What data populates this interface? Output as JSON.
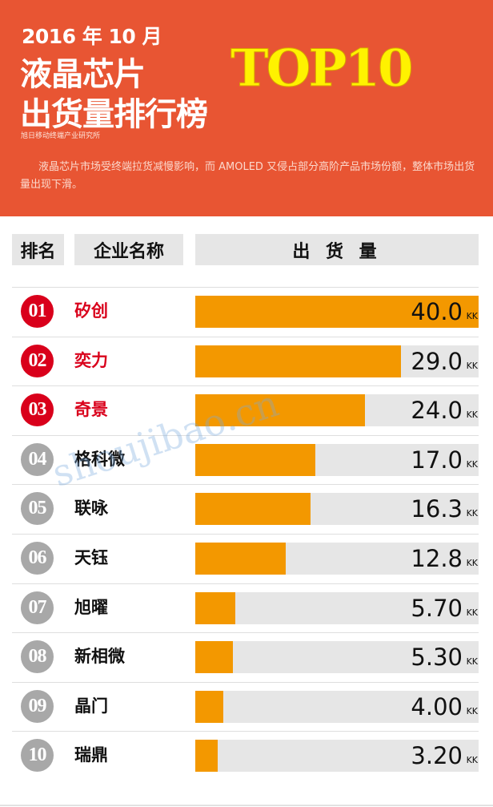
{
  "header": {
    "date": "2016 年 10 月",
    "title_line1": "液晶芯片",
    "title_line2": "出货量排行榜",
    "badge_text": "TOP10",
    "source": "旭日移动终端产业研究所",
    "description": "液晶芯片市场受终端拉货减慢影响，而 AMOLED 又侵占部分高阶产品市场份额，整体市场出货量出现下滑。"
  },
  "columns": {
    "rank": "排名",
    "name": "企业名称",
    "value": "出 货 量"
  },
  "unit": "KK",
  "watermark": "shoujibao.cn",
  "colors": {
    "header_bg": "#e85533",
    "bar": "#f39800",
    "track": "#e6e6e6",
    "top3": "#d9001b",
    "other": "#a8a8a8"
  },
  "rows": [
    {
      "rank": "01",
      "name": "矽创",
      "value": "40.0"
    },
    {
      "rank": "02",
      "name": "奕力",
      "value": "29.0"
    },
    {
      "rank": "03",
      "name": "奇景",
      "value": "24.0"
    },
    {
      "rank": "04",
      "name": "格科微",
      "value": "17.0"
    },
    {
      "rank": "05",
      "name": "联咏",
      "value": "16.3"
    },
    {
      "rank": "06",
      "name": "天钰",
      "value": "12.8"
    },
    {
      "rank": "07",
      "name": "旭曜",
      "value": "5.70"
    },
    {
      "rank": "08",
      "name": "新相微",
      "value": "5.30"
    },
    {
      "rank": "09",
      "name": "晶门",
      "value": "4.00"
    },
    {
      "rank": "10",
      "name": "瑞鼎",
      "value": "3.20"
    }
  ],
  "chart_data": {
    "type": "bar",
    "orientation": "horizontal",
    "title": "2016年10月液晶芯片出货量排行榜 TOP10",
    "categories": [
      "矽创",
      "奕力",
      "奇景",
      "格科微",
      "联咏",
      "天钰",
      "旭曜",
      "新相微",
      "晶门",
      "瑞鼎"
    ],
    "values": [
      40.0,
      29.0,
      24.0,
      17.0,
      16.3,
      12.8,
      5.7,
      5.3,
      4.0,
      3.2
    ],
    "xlabel": "出货量 (KK)",
    "ylabel": "企业名称",
    "xlim": [
      0,
      40
    ]
  }
}
